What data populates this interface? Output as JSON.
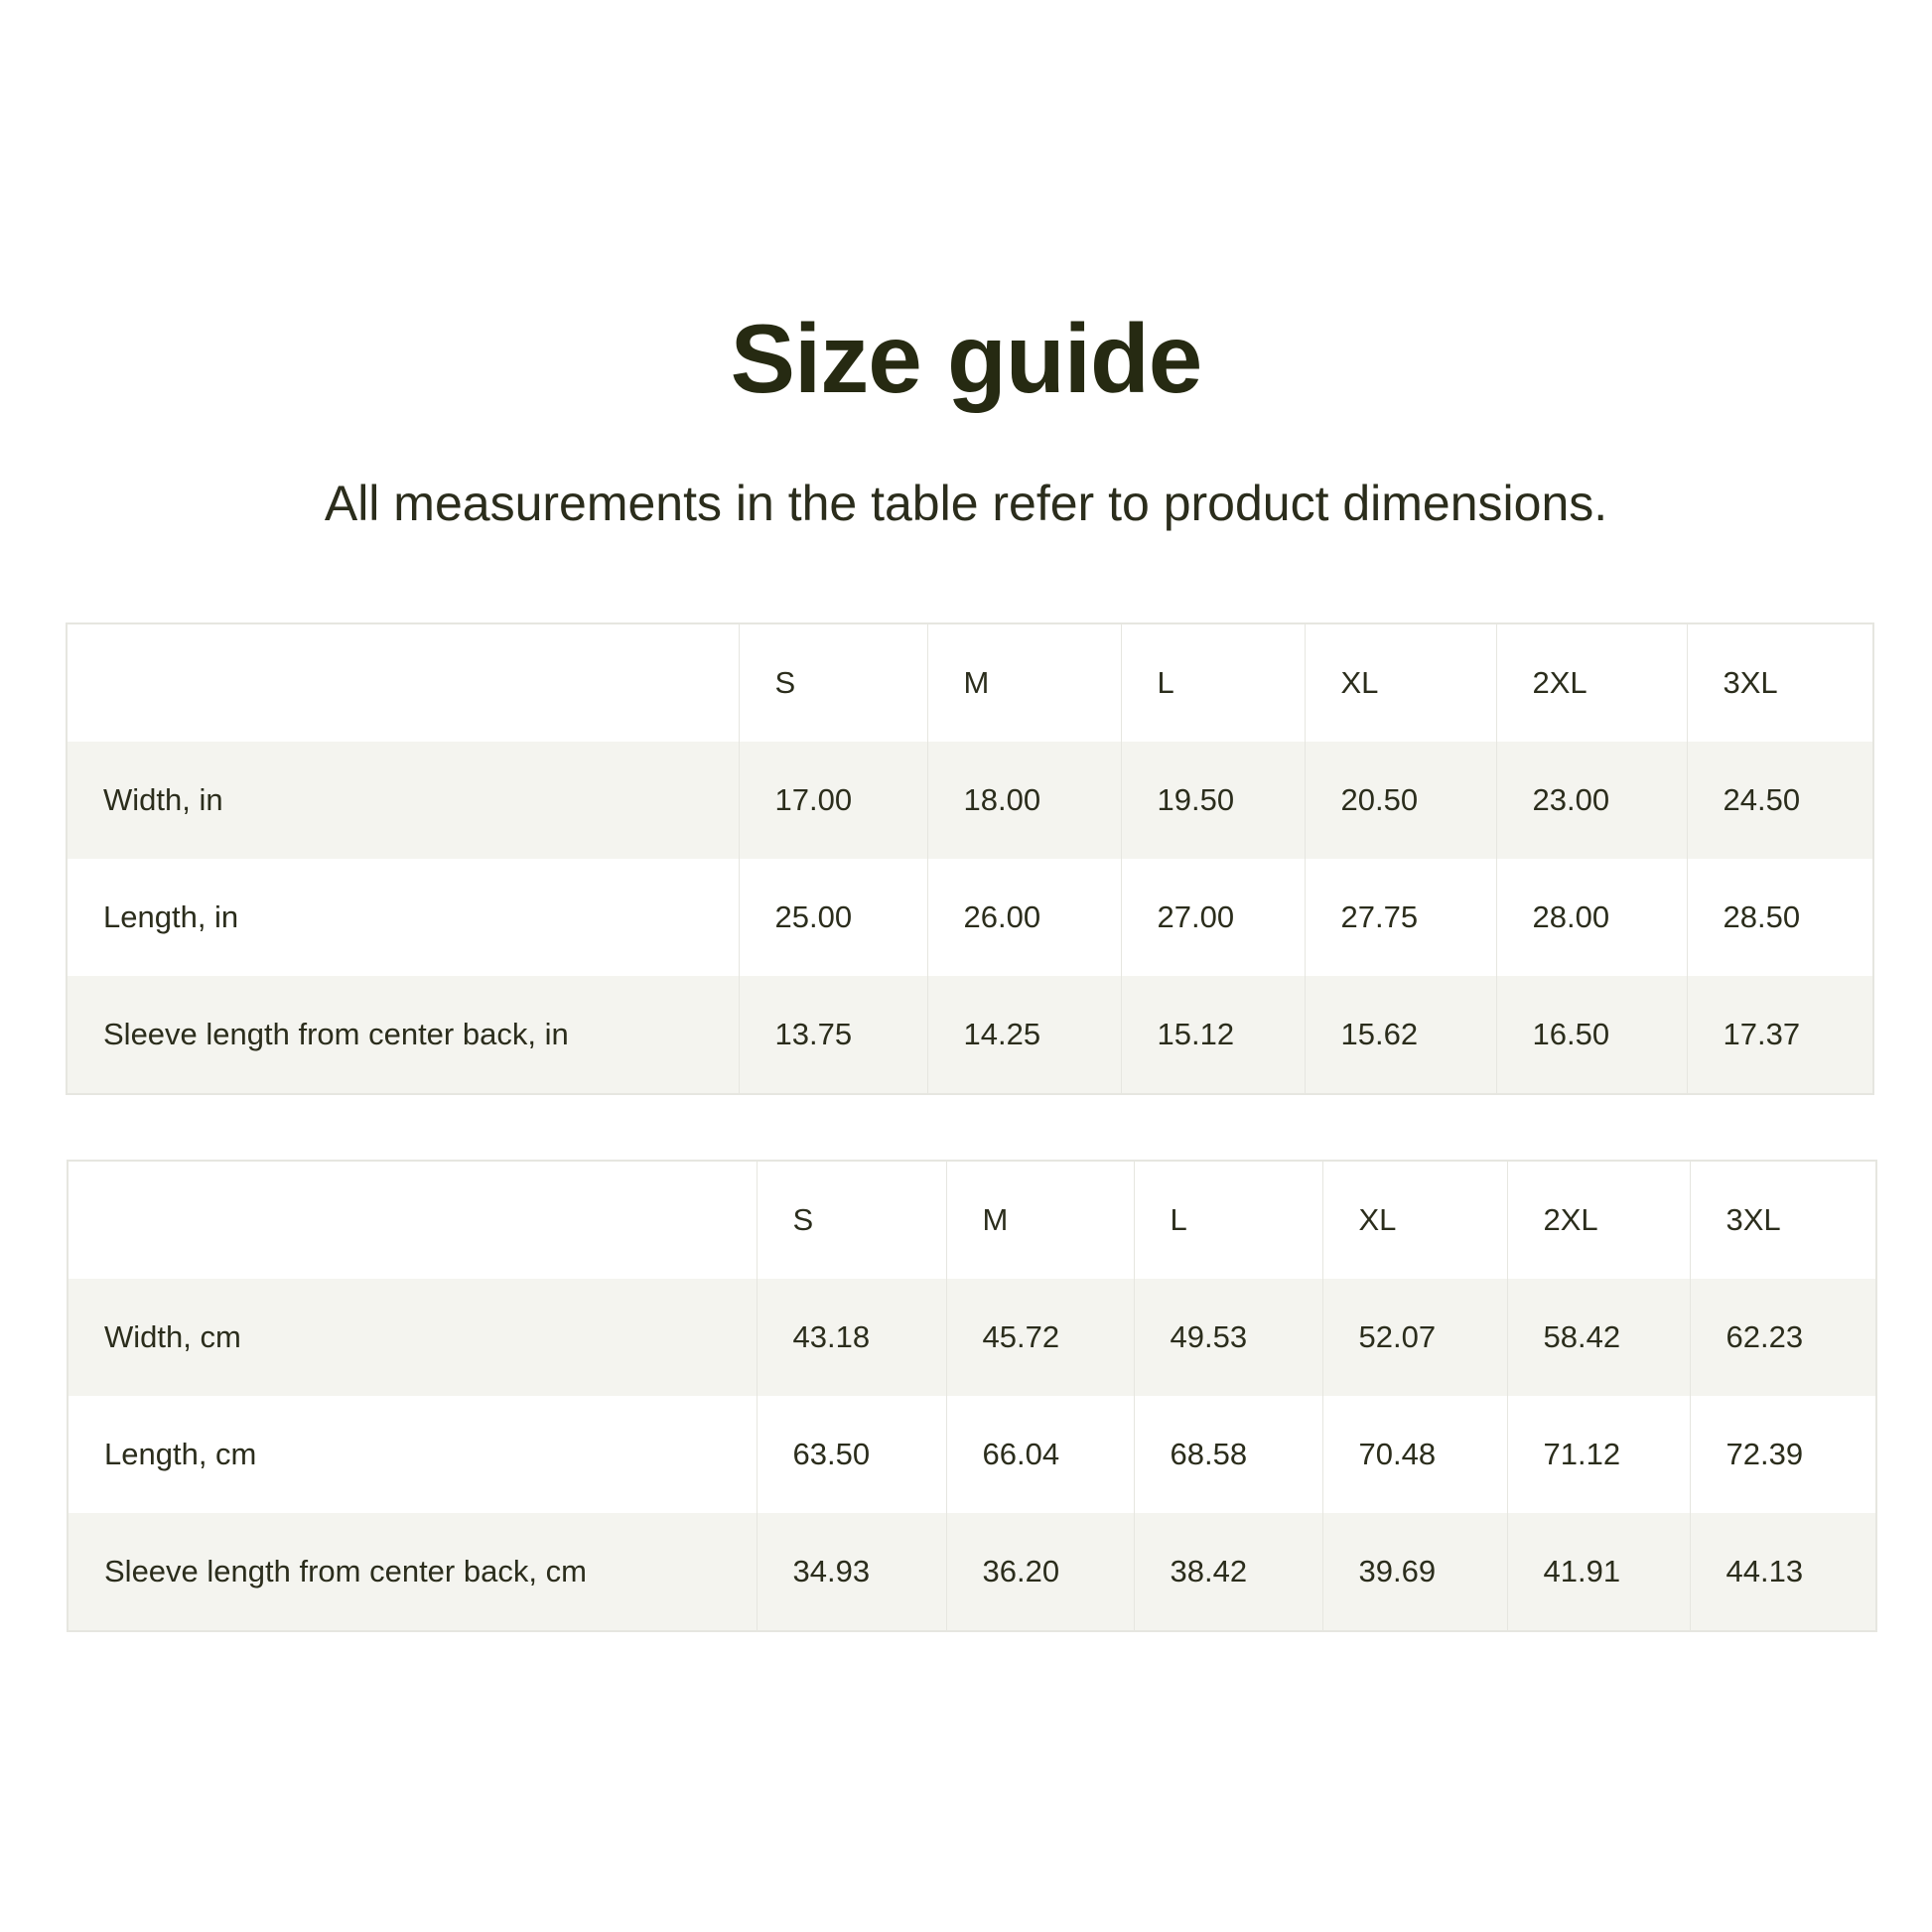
{
  "title": "Size guide",
  "subtitle": "All measurements in the table refer to product dimensions.",
  "colors": {
    "text": "#262a12",
    "row_alt": "#f4f4ef",
    "border": "#e6e6e0"
  },
  "tables": [
    {
      "headers": [
        "",
        "S",
        "M",
        "L",
        "XL",
        "2XL",
        "3XL"
      ],
      "rows": [
        {
          "label": "Width, in",
          "values": [
            "17.00",
            "18.00",
            "19.50",
            "20.50",
            "23.00",
            "24.50"
          ]
        },
        {
          "label": "Length, in",
          "values": [
            "25.00",
            "26.00",
            "27.00",
            "27.75",
            "28.00",
            "28.50"
          ]
        },
        {
          "label": "Sleeve length from center back, in",
          "values": [
            "13.75",
            "14.25",
            "15.12",
            "15.62",
            "16.50",
            "17.37"
          ]
        }
      ]
    },
    {
      "headers": [
        "",
        "S",
        "M",
        "L",
        "XL",
        "2XL",
        "3XL"
      ],
      "rows": [
        {
          "label": "Width, cm",
          "values": [
            "43.18",
            "45.72",
            "49.53",
            "52.07",
            "58.42",
            "62.23"
          ]
        },
        {
          "label": "Length, cm",
          "values": [
            "63.50",
            "66.04",
            "68.58",
            "70.48",
            "71.12",
            "72.39"
          ]
        },
        {
          "label": "Sleeve length from center back, cm",
          "values": [
            "34.93",
            "36.20",
            "38.42",
            "39.69",
            "41.91",
            "44.13"
          ]
        }
      ]
    }
  ]
}
